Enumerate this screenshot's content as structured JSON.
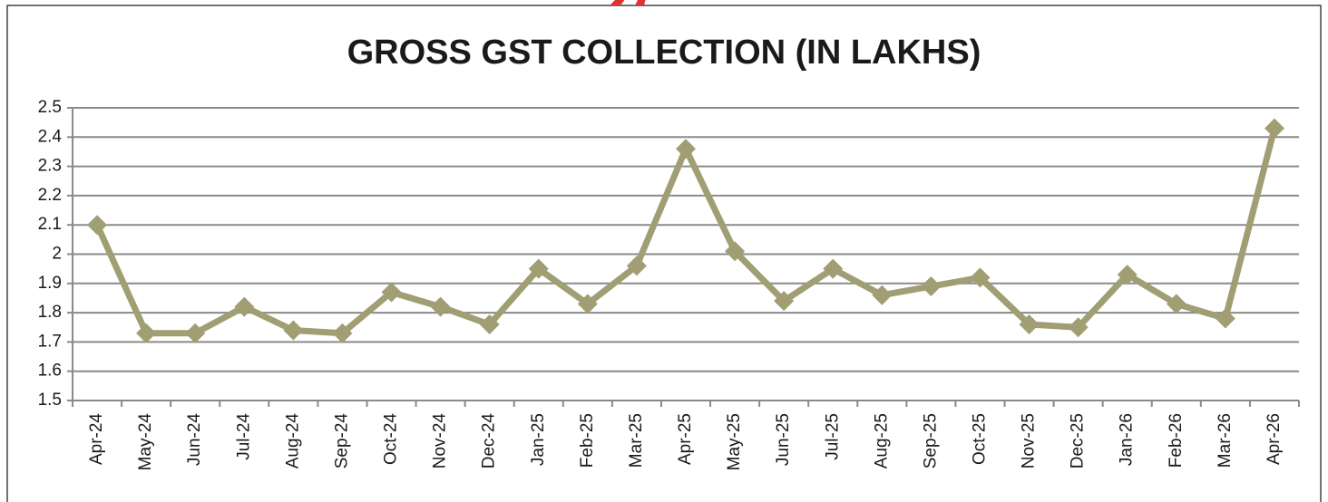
{
  "chart_data": {
    "type": "line",
    "title": "GROSS GST COLLECTION  (IN LAKHS)",
    "categories": [
      "Apr-24",
      "May-24",
      "Jun-24",
      "Jul-24",
      "Aug-24",
      "Sep-24",
      "Oct-24",
      "Nov-24",
      "Dec-24",
      "Jan-25",
      "Feb-25",
      "Mar-25",
      "Apr-25",
      "May-25",
      "Jun-25",
      "Jul-25",
      "Aug-25",
      "Sep-25",
      "Oct-25",
      "Nov-25",
      "Dec-25",
      "Jan-26",
      "Feb-26",
      "Mar-26",
      "Apr-26"
    ],
    "series": [
      {
        "color": "#a09e72",
        "values": [
          2.1,
          1.73,
          1.73,
          1.82,
          1.74,
          1.73,
          1.87,
          1.82,
          1.76,
          1.95,
          1.83,
          1.96,
          2.36,
          2.01,
          1.84,
          1.95,
          1.86,
          1.89,
          1.92,
          1.76,
          1.75,
          1.93,
          1.83,
          1.78,
          2.43
        ]
      }
    ],
    "ylim": [
      1.5,
      2.5
    ],
    "yticks": [
      1.5,
      1.6,
      1.7,
      1.8,
      1.9,
      2,
      2.1,
      2.2,
      2.3,
      2.4,
      2.5
    ],
    "grid": true
  }
}
